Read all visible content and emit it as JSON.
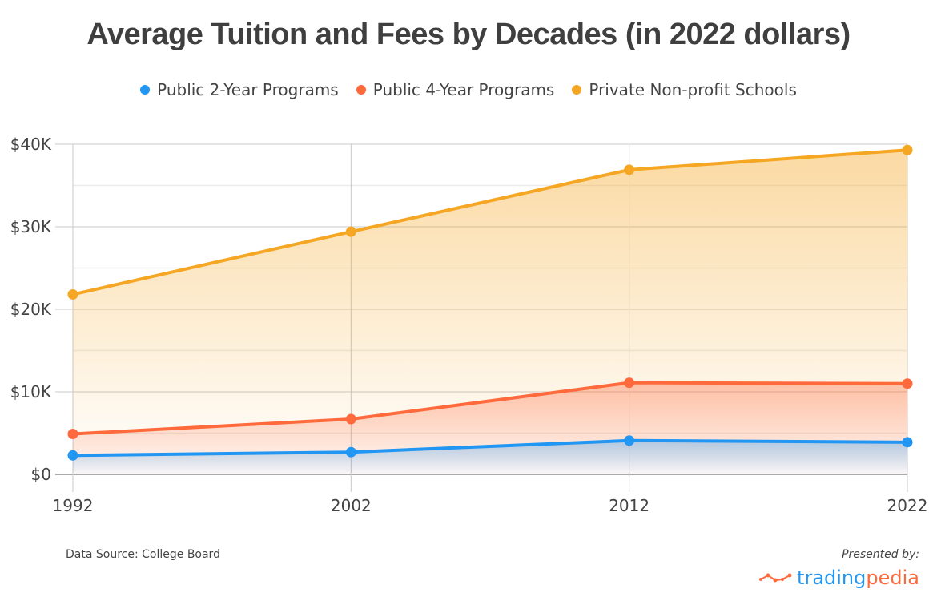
{
  "chart_data": {
    "type": "area",
    "title": "Average Tuition and Fees by Decades (in 2022 dollars)",
    "x": [
      "1992",
      "2002",
      "2012",
      "2022"
    ],
    "xlabel": "",
    "ylabel": "",
    "ylim": [
      0,
      40000
    ],
    "yticks": [
      0,
      10000,
      20000,
      30000,
      40000
    ],
    "ytick_labels": [
      "$0",
      "$10K",
      "$20K",
      "$30K",
      "$40K"
    ],
    "minor_gridlines_every": 5000,
    "grid": true,
    "legend_position": "top-center",
    "series": [
      {
        "name": "Public 2-Year Programs",
        "color": "#2196f3",
        "values": [
          2300,
          2700,
          4100,
          3900
        ]
      },
      {
        "name": "Public 4-Year Programs",
        "color": "#ff6a3d",
        "values": [
          4900,
          6700,
          11100,
          11000
        ]
      },
      {
        "name": "Private Non-profit Schools",
        "color": "#f5a623",
        "values": [
          21800,
          29400,
          36900,
          39300
        ]
      }
    ]
  },
  "footer": {
    "source": "Data Source: College Board",
    "presented_by": "Presented by:",
    "brand_part1": "trading",
    "brand_part2": "pedia"
  }
}
